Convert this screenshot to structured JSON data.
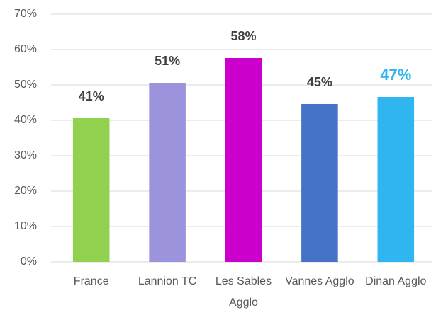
{
  "chart_data": {
    "type": "bar",
    "categories": [
      "France",
      "Lannion TC",
      "Les Sables Agglo",
      "Vannes Agglo",
      "Dinan Agglo"
    ],
    "values": [
      40.6,
      50.6,
      57.6,
      44.6,
      46.6
    ],
    "value_labels": [
      "41%",
      "51%",
      "58%",
      "45%",
      "47%"
    ],
    "colors": [
      "#92d050",
      "#9b94dc",
      "#cc00cc",
      "#4472c4",
      "#2fb5ef"
    ],
    "ylim": [
      0,
      70
    ],
    "yticks": [
      {
        "value": 0,
        "label": "0%"
      },
      {
        "value": 10,
        "label": "10%"
      },
      {
        "value": 20,
        "label": "20%"
      },
      {
        "value": 30,
        "label": "30%"
      },
      {
        "value": 40,
        "label": "40%"
      },
      {
        "value": 50,
        "label": "50%"
      },
      {
        "value": 60,
        "label": "60%"
      },
      {
        "value": 70,
        "label": "70%"
      }
    ],
    "grid": true
  }
}
